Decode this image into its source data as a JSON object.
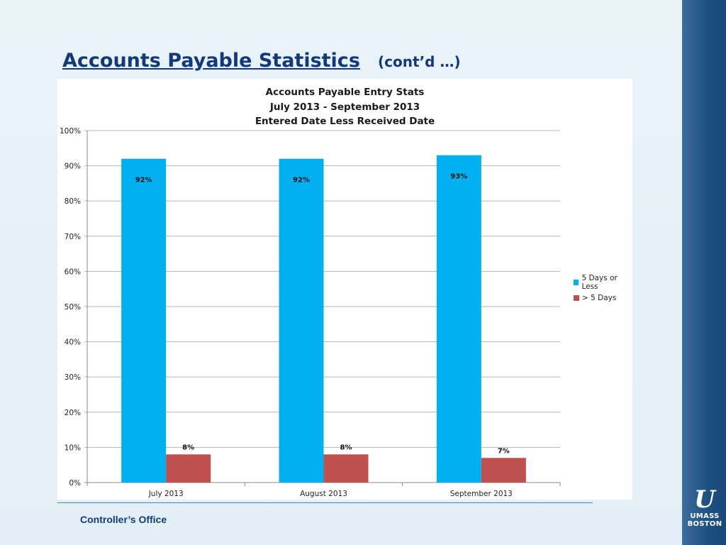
{
  "slide": {
    "title": "Accounts Payable Statistics",
    "title_suffix": "(cont’d …)",
    "footer": "Controller’s Office",
    "logo": {
      "line1": "UMASS",
      "line2": "BOSTON"
    }
  },
  "colors": {
    "title": "#123a7a",
    "series1": "#00b0f0",
    "series2": "#c0504d",
    "corner_panel": "#1d4f80"
  },
  "chart_data": {
    "type": "bar",
    "title": [
      "Accounts Payable Entry Stats",
      "July 2013 - September 2013",
      "Entered Date Less Received Date"
    ],
    "categories": [
      "July 2013",
      "August 2013",
      "September 2013"
    ],
    "series": [
      {
        "name": "5 Days or Less",
        "values": [
          92,
          92,
          93
        ],
        "labels": [
          "92%",
          "92%",
          "93%"
        ]
      },
      {
        "name": "> 5 Days",
        "values": [
          8,
          8,
          7
        ],
        "labels": [
          "8%",
          "8%",
          "7%"
        ]
      }
    ],
    "ylim": [
      0,
      100
    ],
    "yticks": [
      0,
      10,
      20,
      30,
      40,
      50,
      60,
      70,
      80,
      90,
      100
    ],
    "ytick_labels": [
      "0%",
      "10%",
      "20%",
      "30%",
      "40%",
      "50%",
      "60%",
      "70%",
      "80%",
      "90%",
      "100%"
    ],
    "grid": true,
    "legend": "right"
  }
}
